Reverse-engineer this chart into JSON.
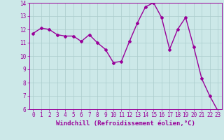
{
  "x": [
    0,
    1,
    2,
    3,
    4,
    5,
    6,
    7,
    8,
    9,
    10,
    11,
    12,
    13,
    14,
    15,
    16,
    17,
    18,
    19,
    20,
    21,
    22,
    23
  ],
  "y": [
    11.7,
    12.1,
    12.0,
    11.6,
    11.5,
    11.5,
    11.1,
    11.6,
    11.0,
    10.5,
    9.5,
    9.6,
    11.1,
    12.5,
    13.7,
    14.0,
    12.9,
    10.5,
    12.0,
    12.9,
    10.7,
    8.3,
    7.0,
    5.9
  ],
  "line_color": "#990099",
  "marker": "D",
  "marker_size": 2,
  "bg_color": "#cce8e8",
  "grid_color": "#aacccc",
  "xlabel": "Windchill (Refroidissement éolien,°C)",
  "ylabel": "",
  "title": "",
  "xlim": [
    -0.5,
    23.5
  ],
  "ylim": [
    6,
    14
  ],
  "yticks": [
    6,
    7,
    8,
    9,
    10,
    11,
    12,
    13,
    14
  ],
  "xticks": [
    0,
    1,
    2,
    3,
    4,
    5,
    6,
    7,
    8,
    9,
    10,
    11,
    12,
    13,
    14,
    15,
    16,
    17,
    18,
    19,
    20,
    21,
    22,
    23
  ],
  "xlabel_color": "#990099",
  "tick_color": "#990099",
  "axis_label_fontsize": 6.5,
  "tick_fontsize": 5.5,
  "linewidth": 1.0,
  "spine_color": "#990099"
}
